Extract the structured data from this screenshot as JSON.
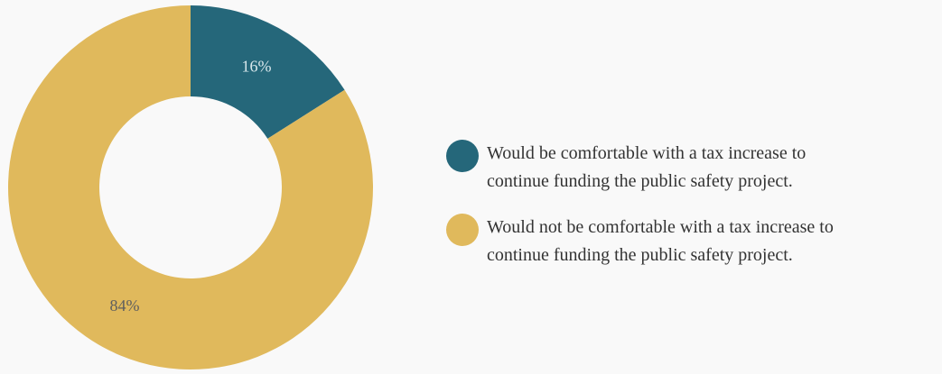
{
  "chart_data": {
    "type": "pie",
    "donut": true,
    "title": "",
    "slices": [
      {
        "label": "Would be comfortable with a tax increase to continue funding the public safety project.",
        "legend_lines": [
          "Would be comfortable with a tax increase to",
          "continue funding the public safety project."
        ],
        "value": 16,
        "value_label": "16%",
        "color": "#25677a",
        "label_color": "#d9e8ec"
      },
      {
        "label": "Would not be comfortable with a tax increase to continue funding the public safety project.",
        "legend_lines": [
          "Would not be comfortable with a tax increase to",
          "continue funding the public safety project."
        ],
        "value": 84,
        "value_label": "84%",
        "color": "#e0b95c",
        "label_color": "#5e5e5e"
      }
    ],
    "legend_position": "right",
    "background": "#f9f9f9"
  }
}
